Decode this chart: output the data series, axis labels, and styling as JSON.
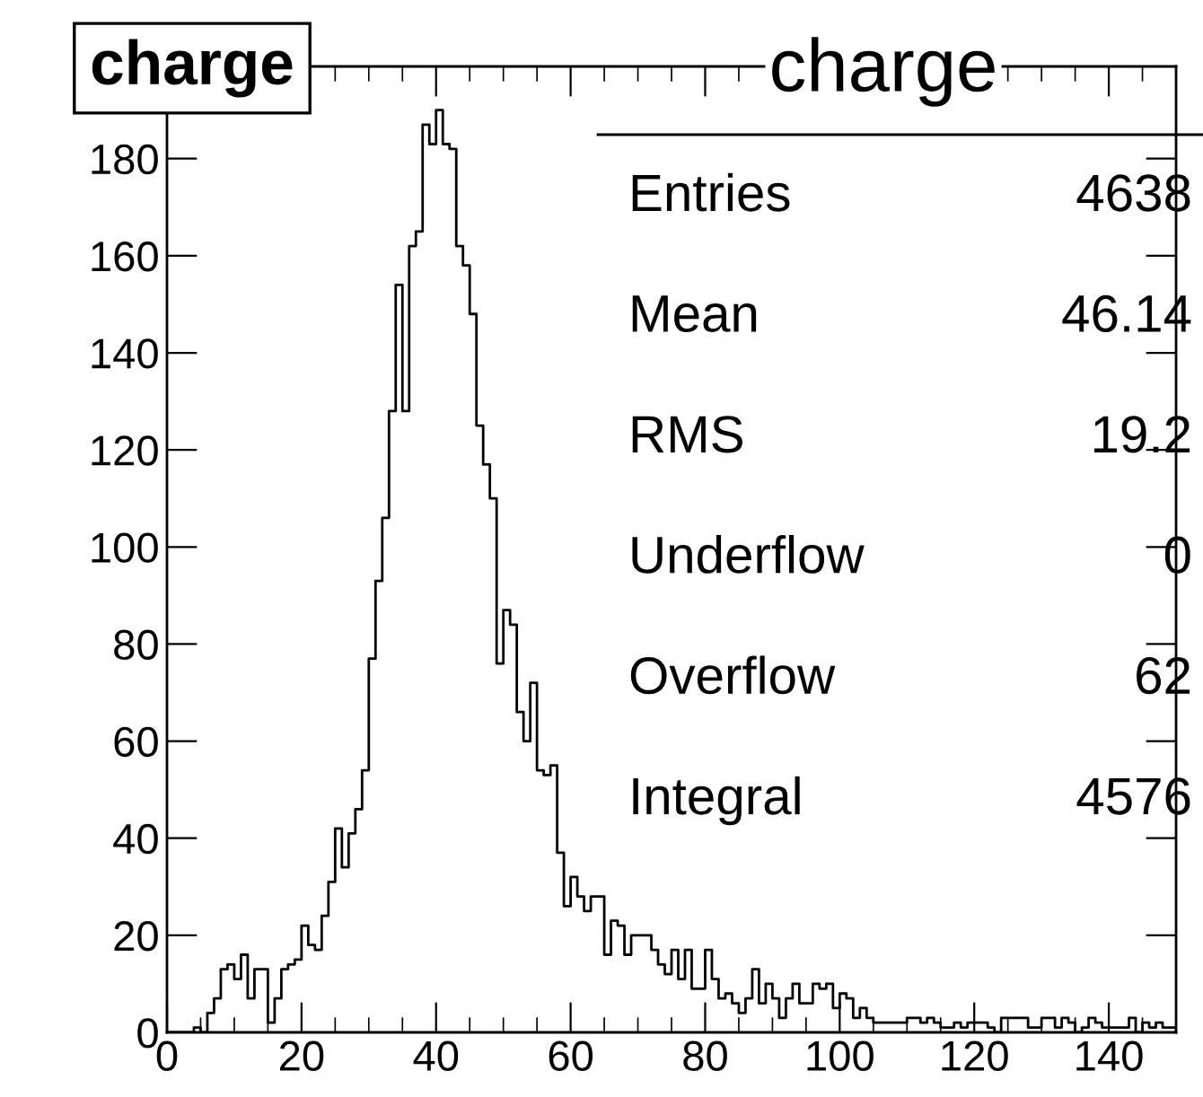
{
  "chart_data": {
    "type": "histogram",
    "title": "charge",
    "annotations": [
      "charge",
      "Entries",
      "4638",
      "Mean",
      "46.14",
      "RMS",
      "19.2",
      "Underflow",
      "0",
      "Overflow",
      "62",
      "Integral",
      "4576"
    ],
    "bins": [
      0,
      1,
      2,
      3,
      4,
      5,
      6,
      7,
      8,
      9,
      10,
      11,
      12,
      13,
      14,
      15,
      16,
      17,
      18,
      19,
      20,
      21,
      22,
      23,
      24,
      25,
      26,
      27,
      28,
      29,
      30,
      31,
      32,
      33,
      34,
      35,
      36,
      37,
      38,
      39,
      40,
      41,
      42,
      43,
      44,
      45,
      46,
      47,
      48,
      49,
      50,
      51,
      52,
      53,
      54,
      55,
      56,
      57,
      58,
      59,
      60,
      61,
      62,
      63,
      64,
      65,
      66,
      67,
      68,
      69,
      70,
      71,
      72,
      73,
      74,
      75,
      76,
      77,
      78,
      79,
      80,
      81,
      82,
      83,
      84,
      85,
      86,
      87,
      88,
      89,
      90,
      91,
      92,
      93,
      94,
      95,
      96,
      97,
      98,
      99,
      100,
      101,
      102,
      103,
      104,
      105,
      106,
      107,
      108,
      109,
      110,
      111,
      112,
      113,
      114,
      115,
      116,
      117,
      118,
      119,
      120,
      121,
      122,
      123,
      124,
      125,
      126,
      127,
      128,
      129,
      130,
      131,
      132,
      133,
      134,
      135,
      136,
      137,
      138,
      139,
      140,
      141,
      142,
      143,
      144,
      145,
      146,
      147,
      148,
      149,
      150
    ],
    "values": [
      0,
      0,
      0,
      0,
      1,
      0,
      4,
      7,
      13,
      14,
      11,
      16,
      7,
      13,
      13,
      2,
      7,
      13,
      14,
      15,
      22,
      18,
      17,
      24,
      31,
      42,
      34,
      41,
      46,
      54,
      77,
      93,
      106,
      128,
      154,
      128,
      162,
      165,
      187,
      183,
      190,
      183,
      182,
      162,
      158,
      148,
      125,
      117,
      110,
      76,
      87,
      84,
      66,
      60,
      72,
      54,
      53,
      55,
      37,
      26,
      32,
      28,
      25,
      28,
      28,
      16,
      23,
      22,
      16,
      20,
      20,
      20,
      17,
      14,
      12,
      17,
      11,
      17,
      9,
      9,
      17,
      11,
      7,
      8,
      6,
      4,
      7,
      13,
      6,
      10,
      7,
      3,
      7,
      10,
      6,
      6,
      10,
      9,
      10,
      5,
      8,
      7,
      3,
      5,
      3,
      2,
      2,
      2,
      2,
      2,
      3,
      3,
      2,
      3,
      2,
      1,
      1,
      2,
      1,
      2,
      2,
      2,
      1,
      0,
      3,
      3,
      3,
      3,
      1,
      1,
      3,
      3,
      1,
      3,
      2,
      0,
      1,
      3,
      2,
      1,
      1,
      1,
      1,
      3,
      0,
      2,
      1,
      2,
      1,
      1
    ],
    "color": "#000000",
    "xlim": [
      0,
      150
    ],
    "xticks": [
      0,
      20,
      40,
      60,
      80,
      100,
      120,
      140
    ],
    "ylim": [
      0,
      199
    ],
    "yticks": [
      0,
      20,
      40,
      60,
      80,
      100,
      120,
      140,
      160,
      180
    ],
    "grid": false,
    "legend": false
  }
}
